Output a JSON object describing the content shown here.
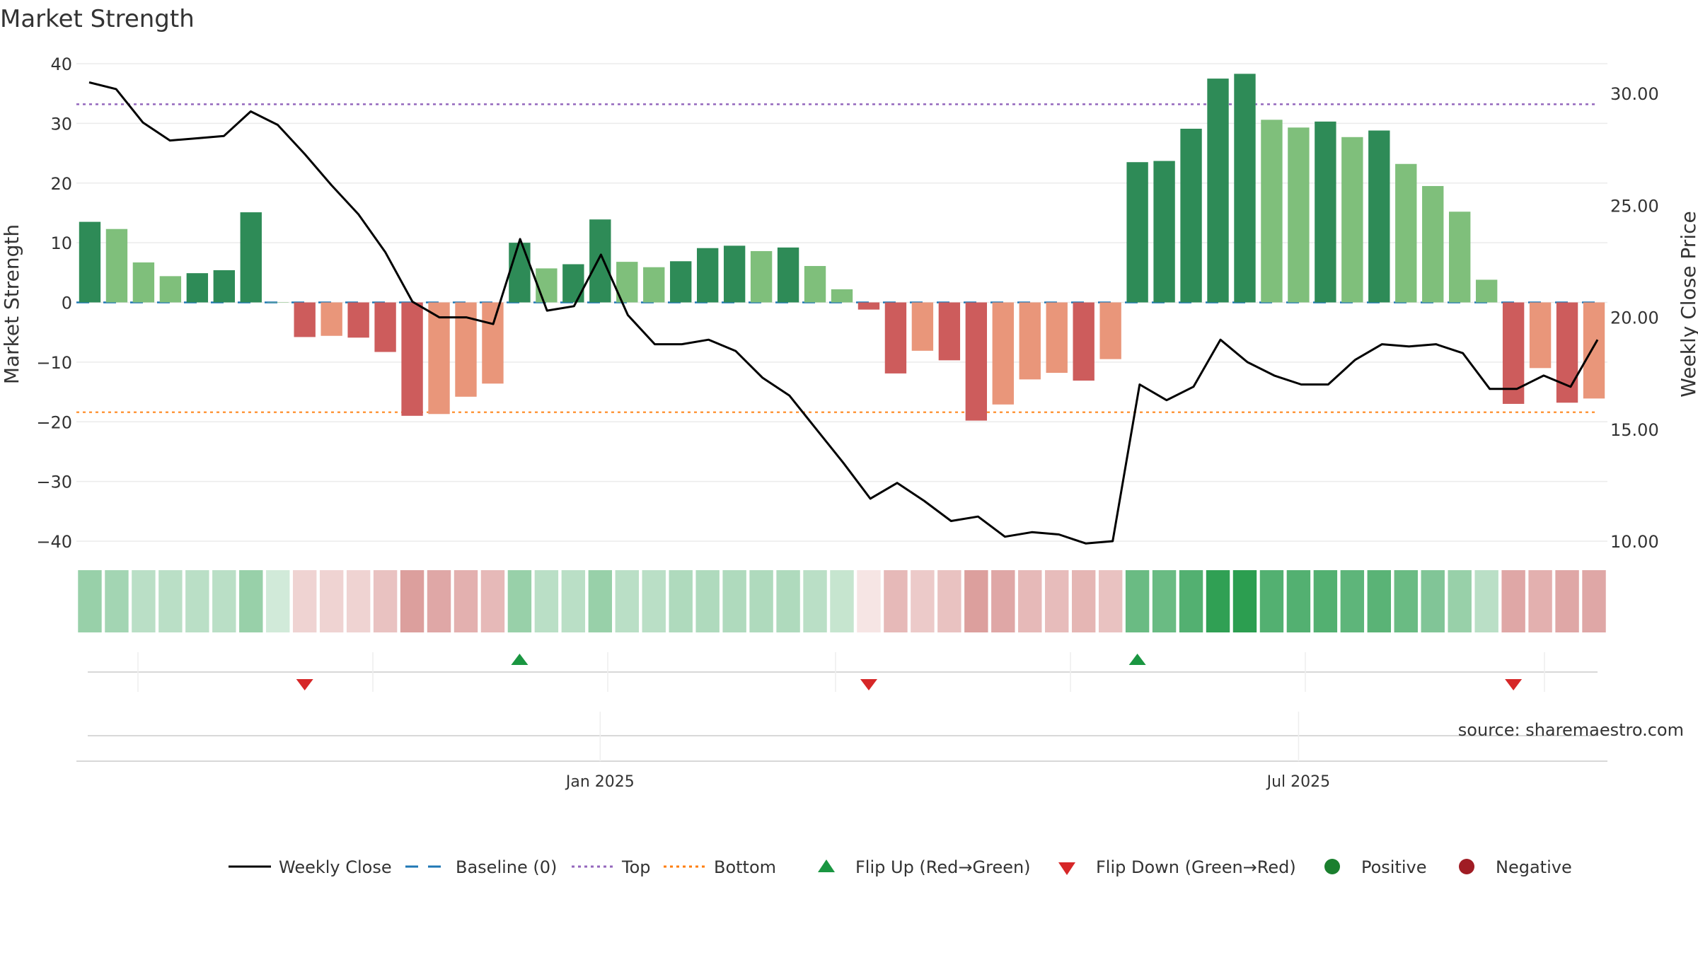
{
  "chart_data": {
    "type": "bar",
    "title": "Market Strength",
    "ylabel": "Market Strength",
    "y2label": "Weekly Close Price",
    "ylim": [
      -40,
      40
    ],
    "y2lim": [
      10.0,
      30.0
    ],
    "yticks": [
      40,
      30,
      20,
      10,
      0,
      -10,
      -20,
      -30,
      -40
    ],
    "ytick_labels": [
      "40",
      "30",
      "20",
      "10",
      "0",
      "−10",
      "−20",
      "−30",
      "−40"
    ],
    "y2ticks": [
      30,
      25,
      20,
      15,
      10
    ],
    "y2tick_labels": [
      "30.00",
      "25.00",
      "20.00",
      "15.00",
      "10.00"
    ],
    "xtick_labels": [
      {
        "index": 19.5,
        "label": "Jan 2025"
      },
      {
        "index": 45.5,
        "label": "Jul 2025"
      }
    ],
    "strength": [
      13.5,
      12.3,
      6.7,
      4.4,
      4.9,
      5.4,
      15.1,
      0,
      -5.8,
      -5.6,
      -5.9,
      -8.3,
      -19.0,
      -18.7,
      -15.8,
      -13.6,
      10.0,
      5.7,
      6.4,
      13.9,
      6.8,
      5.9,
      6.9,
      9.1,
      9.5,
      8.6,
      9.2,
      6.1,
      2.2,
      -1.2,
      -11.9,
      -8.1,
      -9.7,
      -19.8,
      -17.1,
      -12.9,
      -11.8,
      -13.1,
      -9.5,
      23.5,
      23.7,
      29.1,
      37.5,
      38.3,
      30.6,
      29.3,
      30.3,
      27.7,
      28.8,
      23.2,
      19.5,
      15.2,
      3.8,
      -17.0,
      -11.0,
      -16.8,
      -16.1
    ],
    "close": [
      30.5,
      30.2,
      28.7,
      27.9,
      28.0,
      28.1,
      29.2,
      28.6,
      27.3,
      25.9,
      24.6,
      22.9,
      20.7,
      20.0,
      20.0,
      19.7,
      23.5,
      20.3,
      20.5,
      22.8,
      20.1,
      18.8,
      18.8,
      19.0,
      18.5,
      17.3,
      16.5,
      15.0,
      13.5,
      11.9,
      12.6,
      11.8,
      10.9,
      11.1,
      10.2,
      10.4,
      10.3,
      9.9,
      10.0,
      17.0,
      16.3,
      16.9,
      19.0,
      18.0,
      17.4,
      17.0,
      17.0,
      18.1,
      18.8,
      18.7,
      18.8,
      18.4,
      16.8,
      16.8,
      17.4,
      16.9,
      19.0
    ],
    "heatmap_alpha": [
      0.45,
      0.4,
      0.3,
      0.3,
      0.3,
      0.3,
      0.45,
      0.2,
      0.25,
      0.25,
      0.25,
      0.35,
      0.55,
      0.5,
      0.45,
      0.4,
      0.45,
      0.3,
      0.3,
      0.45,
      0.3,
      0.3,
      0.35,
      0.35,
      0.35,
      0.35,
      0.35,
      0.3,
      0.25,
      0.15,
      0.4,
      0.3,
      0.35,
      0.55,
      0.5,
      0.4,
      0.38,
      0.42,
      0.35,
      0.65,
      0.65,
      0.75,
      0.9,
      0.92,
      0.75,
      0.75,
      0.75,
      0.7,
      0.72,
      0.65,
      0.55,
      0.45,
      0.3,
      0.5,
      0.45,
      0.5,
      0.5
    ],
    "top_level": 33.2,
    "bottom_level": -18.4,
    "flips_up": [
      16,
      39
    ],
    "flips_down": [
      8,
      29,
      53
    ],
    "source": "source: sharemaestro.com",
    "legend_location": "bottom-center",
    "legend": [
      {
        "label": "Weekly Close",
        "kind": "line",
        "color": "#000000"
      },
      {
        "label": "Baseline (0)",
        "kind": "dash",
        "color": "#1f77b4"
      },
      {
        "label": "Top",
        "kind": "dot",
        "color": "#9467bd"
      },
      {
        "label": "Bottom",
        "kind": "dot",
        "color": "#ff7f0e"
      },
      {
        "label": "Flip Up (Red→Green)",
        "kind": "tri-up",
        "color": "#1a9641"
      },
      {
        "label": "Flip Down (Green→Red)",
        "kind": "tri-down",
        "color": "#d62728"
      },
      {
        "label": "Positive",
        "kind": "circle",
        "color": "#1a7f2e"
      },
      {
        "label": "Negative",
        "kind": "circle",
        "color": "#a01c24"
      }
    ],
    "colors": {
      "pos_strong": "#2e8b57",
      "pos_weak": "#7fbf7b",
      "neg_strong": "#cd5c5c",
      "neg_weak": "#e9967a",
      "heat_pos": "#1a9641",
      "heat_neg": "#c0504d"
    }
  }
}
